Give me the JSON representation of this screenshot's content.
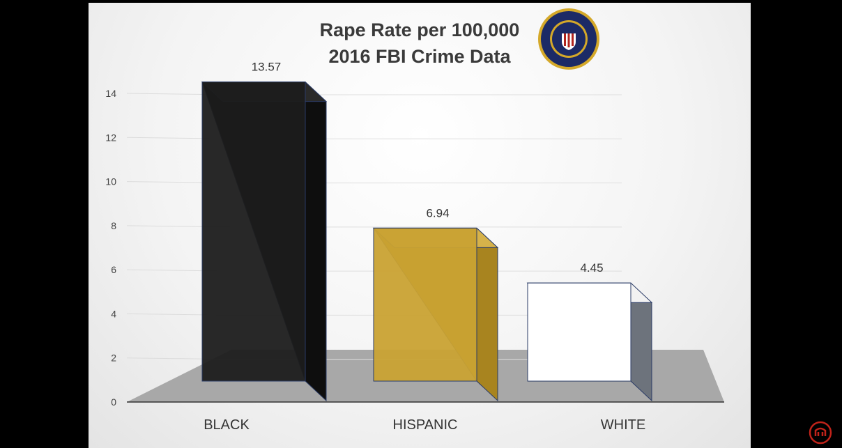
{
  "chart_data": {
    "type": "bar",
    "title": "Rape Rate per 100,000",
    "subtitle": "2016 FBI Crime Data",
    "categories": [
      "BLACK",
      "HISPANIC",
      "WHITE"
    ],
    "values": [
      13.57,
      6.94,
      4.45
    ],
    "data_labels": [
      "13.57",
      "6.94",
      "4.45"
    ],
    "y_ticks": [
      "0",
      "2",
      "4",
      "6",
      "8",
      "10",
      "12",
      "14"
    ],
    "ylim": [
      0,
      14
    ],
    "xlabel": "",
    "ylabel": "",
    "grid": true,
    "style": "3d",
    "colors": [
      "#1c1c1c",
      "#c9a233",
      "#ffffff"
    ]
  },
  "seal": {
    "icon": "fbi-seal-icon",
    "colors": [
      "#1c2a66",
      "#d4a829",
      "#b0241e"
    ]
  },
  "corner_logo": {
    "icon": "channel-logo-icon",
    "color": "#c0231a"
  }
}
